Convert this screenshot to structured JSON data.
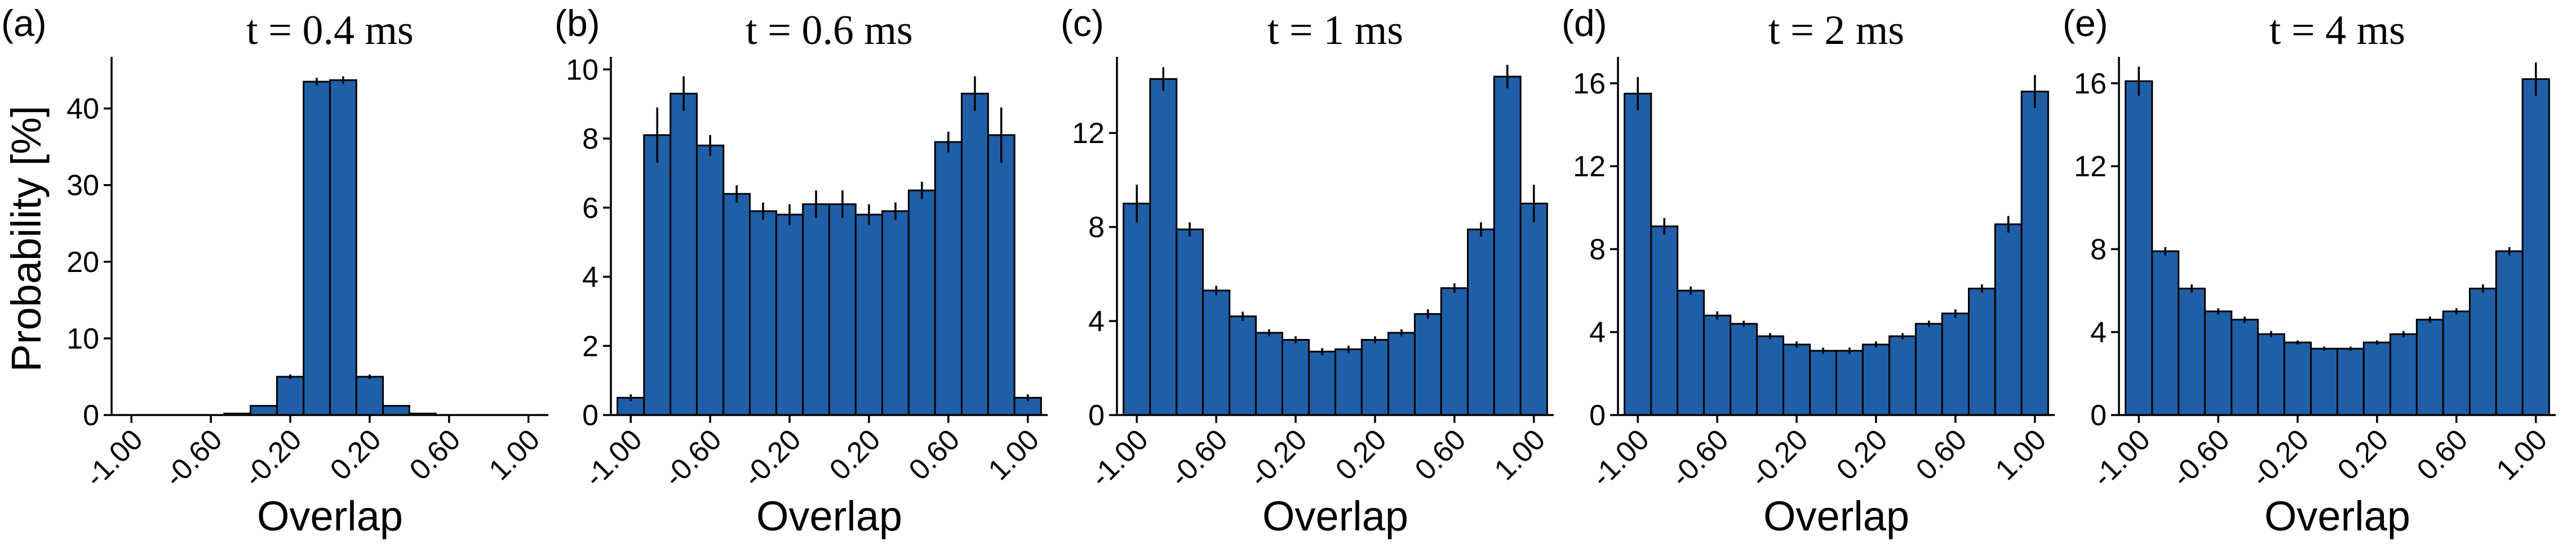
{
  "chart_data": [
    {
      "type": "histogram",
      "panel_label": "(a)",
      "title": "t = 0.4 ms",
      "xlabel": "Overlap",
      "ylabel": "Probability [%]",
      "bins": [
        -1.067,
        -0.933,
        -0.8,
        -0.667,
        -0.533,
        -0.4,
        -0.267,
        -0.133,
        0,
        0.133,
        0.267,
        0.4,
        0.533,
        0.667,
        0.8,
        0.933,
        1.067
      ],
      "values": [
        0,
        0,
        0,
        0,
        0.2,
        1.2,
        5.0,
        43.5,
        43.7,
        5.0,
        1.2,
        0.2,
        0,
        0,
        0,
        0
      ],
      "errors": [
        0,
        0,
        0,
        0,
        0.05,
        0.1,
        0.3,
        0.5,
        0.5,
        0.3,
        0.1,
        0.05,
        0,
        0,
        0,
        0
      ],
      "color": "#1f5fa8",
      "xlim": [
        -1.1,
        1.1
      ],
      "xticks": [
        {
          "value": -1,
          "label": "-1.00"
        },
        {
          "value": -0.6,
          "label": "-0.60"
        },
        {
          "value": -0.2,
          "label": "-0.20"
        },
        {
          "value": 0.2,
          "label": "0.20"
        },
        {
          "value": 0.6,
          "label": "0.60"
        },
        {
          "value": 1,
          "label": "1.00"
        }
      ],
      "ylim": [
        0,
        46
      ],
      "yticks": [
        0,
        10,
        20,
        30,
        40
      ]
    },
    {
      "type": "histogram",
      "panel_label": "(b)",
      "title": "t = 0.6 ms",
      "xlabel": "Overlap",
      "bins": [
        -1.067,
        -0.933,
        -0.8,
        -0.667,
        -0.533,
        -0.4,
        -0.267,
        -0.133,
        0,
        0.133,
        0.267,
        0.4,
        0.533,
        0.667,
        0.8,
        0.933,
        1.067
      ],
      "values": [
        0.5,
        8.1,
        9.3,
        7.8,
        6.4,
        5.9,
        5.8,
        6.1,
        6.1,
        5.8,
        5.9,
        6.5,
        7.9,
        9.3,
        8.1,
        0.5
      ],
      "errors": [
        0.1,
        0.8,
        0.5,
        0.3,
        0.25,
        0.25,
        0.3,
        0.4,
        0.4,
        0.3,
        0.25,
        0.25,
        0.3,
        0.5,
        0.8,
        0.1
      ],
      "color": "#1f5fa8",
      "xlim": [
        -1.1,
        1.1
      ],
      "xticks": [
        {
          "value": -1,
          "label": "-1.00"
        },
        {
          "value": -0.6,
          "label": "-0.60"
        },
        {
          "value": -0.2,
          "label": "-0.20"
        },
        {
          "value": 0.2,
          "label": "0.20"
        },
        {
          "value": 0.6,
          "label": "0.60"
        },
        {
          "value": 1,
          "label": "1.00"
        }
      ],
      "ylim": [
        0,
        10.2
      ],
      "yticks": [
        0,
        2,
        4,
        6,
        8,
        10
      ]
    },
    {
      "type": "histogram",
      "panel_label": "(c)",
      "title": "t = 1 ms",
      "xlabel": "Overlap",
      "bins": [
        -1.067,
        -0.933,
        -0.8,
        -0.667,
        -0.533,
        -0.4,
        -0.267,
        -0.133,
        0,
        0.133,
        0.267,
        0.4,
        0.533,
        0.667,
        0.8,
        0.933,
        1.067
      ],
      "values": [
        9.0,
        14.3,
        7.9,
        5.3,
        4.2,
        3.5,
        3.2,
        2.7,
        2.8,
        3.2,
        3.5,
        4.3,
        5.4,
        7.9,
        14.4,
        9.0
      ],
      "errors": [
        0.8,
        0.5,
        0.3,
        0.2,
        0.2,
        0.15,
        0.15,
        0.15,
        0.15,
        0.15,
        0.15,
        0.2,
        0.2,
        0.3,
        0.5,
        0.8
      ],
      "color": "#1f5fa8",
      "xlim": [
        -1.1,
        1.1
      ],
      "xticks": [
        {
          "value": -1,
          "label": "-1.00"
        },
        {
          "value": -0.6,
          "label": "-0.60"
        },
        {
          "value": -0.2,
          "label": "-0.20"
        },
        {
          "value": 0.2,
          "label": "0.20"
        },
        {
          "value": 0.6,
          "label": "0.60"
        },
        {
          "value": 1,
          "label": "1.00"
        }
      ],
      "ylim": [
        0,
        15
      ],
      "yticks": [
        0,
        4,
        8,
        12
      ]
    },
    {
      "type": "histogram",
      "panel_label": "(d)",
      "title": "t = 2 ms",
      "xlabel": "Overlap",
      "bins": [
        -1.067,
        -0.933,
        -0.8,
        -0.667,
        -0.533,
        -0.4,
        -0.267,
        -0.133,
        0,
        0.133,
        0.267,
        0.4,
        0.533,
        0.667,
        0.8,
        0.933,
        1.067
      ],
      "values": [
        15.5,
        9.1,
        6.0,
        4.8,
        4.4,
        3.8,
        3.4,
        3.1,
        3.1,
        3.4,
        3.8,
        4.4,
        4.9,
        6.1,
        9.2,
        15.6
      ],
      "errors": [
        0.8,
        0.4,
        0.2,
        0.2,
        0.15,
        0.15,
        0.15,
        0.15,
        0.15,
        0.15,
        0.15,
        0.15,
        0.2,
        0.2,
        0.4,
        0.8
      ],
      "color": "#1f5fa8",
      "xlim": [
        -1.1,
        1.1
      ],
      "xticks": [
        {
          "value": -1,
          "label": "-1.00"
        },
        {
          "value": -0.6,
          "label": "-0.60"
        },
        {
          "value": -0.2,
          "label": "-0.20"
        },
        {
          "value": 0.2,
          "label": "0.20"
        },
        {
          "value": 0.6,
          "label": "0.60"
        },
        {
          "value": 1,
          "label": "1.00"
        }
      ],
      "ylim": [
        0,
        17
      ],
      "yticks": [
        0,
        4,
        8,
        12,
        16
      ]
    },
    {
      "type": "histogram",
      "panel_label": "(e)",
      "title": "t = 4 ms",
      "xlabel": "Overlap",
      "bins": [
        -1.067,
        -0.933,
        -0.8,
        -0.667,
        -0.533,
        -0.4,
        -0.267,
        -0.133,
        0,
        0.133,
        0.267,
        0.4,
        0.533,
        0.667,
        0.8,
        0.933,
        1.067
      ],
      "values": [
        16.1,
        7.9,
        6.1,
        5.0,
        4.6,
        3.9,
        3.5,
        3.2,
        3.2,
        3.5,
        3.9,
        4.6,
        5.0,
        6.1,
        7.9,
        16.2
      ],
      "errors": [
        0.7,
        0.2,
        0.2,
        0.15,
        0.15,
        0.15,
        0.1,
        0.1,
        0.1,
        0.1,
        0.15,
        0.15,
        0.15,
        0.2,
        0.2,
        0.8
      ],
      "color": "#1f5fa8",
      "xlim": [
        -1.1,
        1.1
      ],
      "xticks": [
        {
          "value": -1,
          "label": "-1.00"
        },
        {
          "value": -0.6,
          "label": "-0.60"
        },
        {
          "value": -0.2,
          "label": "-0.20"
        },
        {
          "value": 0.2,
          "label": "0.20"
        },
        {
          "value": 0.6,
          "label": "0.60"
        },
        {
          "value": 1,
          "label": "1.00"
        }
      ],
      "ylim": [
        0,
        17
      ],
      "yticks": [
        0,
        4,
        8,
        12,
        16
      ]
    }
  ]
}
